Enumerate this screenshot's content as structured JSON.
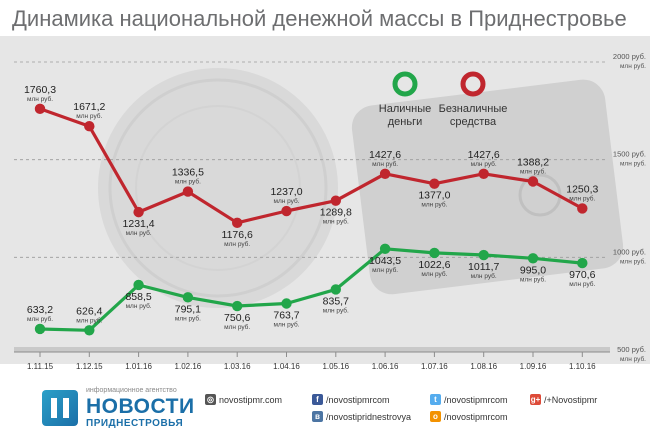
{
  "title": "Динамика национальной денежной массы в Приднестровье",
  "unit": "млн руб.",
  "colors": {
    "cash": "#22a64a",
    "noncash": "#c0262e",
    "bg": "#e6e6e6"
  },
  "chart_data": {
    "type": "line",
    "categories": [
      "1.11.15",
      "1.12.15",
      "1.01.16",
      "1.02.16",
      "1.03.16",
      "1.04.16",
      "1.05.16",
      "1.06.16",
      "1.07.16",
      "1.08.16",
      "1.09.16",
      "1.10.16"
    ],
    "series": [
      {
        "name": "Наличные деньги",
        "color": "#22a64a",
        "values": [
          633.2,
          626.4,
          858.5,
          795.1,
          750.6,
          763.7,
          835.7,
          1043.5,
          1022.6,
          1011.7,
          995.0,
          970.6
        ],
        "labels": [
          "633,2",
          "626,4",
          "858,5",
          "795,1",
          "750,6",
          "763,7",
          "835,7",
          "1043,5",
          "1022,6",
          "1011,7",
          "995,0",
          "970,6"
        ]
      },
      {
        "name": "Безналичные средства",
        "color": "#c0262e",
        "values": [
          1760.3,
          1671.2,
          1231.4,
          1336.5,
          1176.6,
          1237.0,
          1289.8,
          1427.6,
          1377.0,
          1427.6,
          1388.2,
          1250.3
        ],
        "labels": [
          "1760,3",
          "1671,2",
          "1231,4",
          "1336,5",
          "1176,6",
          "1237,0",
          "1289,8",
          "1427,6",
          "1377,0",
          "1427,6",
          "1388,2",
          "1250,3"
        ]
      }
    ],
    "yticks": [
      {
        "value": 2000,
        "label": "2000 руб."
      },
      {
        "value": 1500,
        "label": "1500 руб."
      },
      {
        "value": 1000,
        "label": "1000 руб."
      },
      {
        "value": 500,
        "label": "500 руб."
      }
    ],
    "ytick_sub": "млн руб.",
    "ylim": [
      500,
      2000
    ],
    "legend": {
      "cash": "Наличные деньги",
      "noncash": "Безналичные средства",
      "placement": "top-right"
    }
  },
  "footer": {
    "agency_small": "информационное агентство",
    "logo_main": "НОВОСТИ",
    "logo_sub": "ПРИДНЕСТРОВЬЯ",
    "links": [
      {
        "icon": "globe-icon",
        "text": "novostipmr.com",
        "color": "#555555",
        "glyph": "◎"
      },
      {
        "icon": "facebook-icon",
        "text": "/novostipmrcom",
        "color": "#3b5998",
        "glyph": "f"
      },
      {
        "icon": "twitter-icon",
        "text": "/novostipmrcom",
        "color": "#55acee",
        "glyph": "t"
      },
      {
        "icon": "googleplus-icon",
        "text": "/+Novostipmr",
        "color": "#dd4b39",
        "glyph": "g+"
      },
      {
        "icon": "vk-icon",
        "text": "/novostipridnestrovya",
        "color": "#4c75a3",
        "glyph": "в"
      },
      {
        "icon": "odnoklassniki-icon",
        "text": "/novostipmrcom",
        "color": "#f39200",
        "glyph": "о"
      }
    ]
  }
}
